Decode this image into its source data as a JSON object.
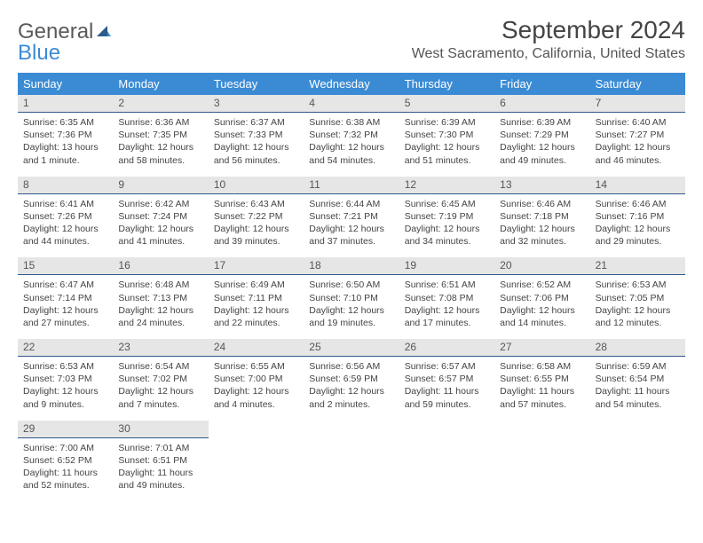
{
  "logo": {
    "text_general": "General",
    "text_blue": "Blue"
  },
  "title": "September 2024",
  "location": "West Sacramento, California, United States",
  "colors": {
    "header_bg": "#3b8bd4",
    "header_text": "#ffffff",
    "daynum_bg": "#e6e6e6",
    "daynum_border": "#2d5a8a",
    "body_text": "#444444",
    "page_bg": "#ffffff"
  },
  "typography": {
    "title_fontsize": 28,
    "location_fontsize": 16,
    "weekday_fontsize": 13,
    "daynum_fontsize": 12,
    "cell_fontsize": 10.5,
    "font_family": "Arial"
  },
  "layout": {
    "cols": 7,
    "rows": 5
  },
  "weekdays": [
    "Sunday",
    "Monday",
    "Tuesday",
    "Wednesday",
    "Thursday",
    "Friday",
    "Saturday"
  ],
  "weeks": [
    [
      {
        "day": "1",
        "sunrise": "Sunrise: 6:35 AM",
        "sunset": "Sunset: 7:36 PM",
        "daylight": "Daylight: 13 hours and 1 minute."
      },
      {
        "day": "2",
        "sunrise": "Sunrise: 6:36 AM",
        "sunset": "Sunset: 7:35 PM",
        "daylight": "Daylight: 12 hours and 58 minutes."
      },
      {
        "day": "3",
        "sunrise": "Sunrise: 6:37 AM",
        "sunset": "Sunset: 7:33 PM",
        "daylight": "Daylight: 12 hours and 56 minutes."
      },
      {
        "day": "4",
        "sunrise": "Sunrise: 6:38 AM",
        "sunset": "Sunset: 7:32 PM",
        "daylight": "Daylight: 12 hours and 54 minutes."
      },
      {
        "day": "5",
        "sunrise": "Sunrise: 6:39 AM",
        "sunset": "Sunset: 7:30 PM",
        "daylight": "Daylight: 12 hours and 51 minutes."
      },
      {
        "day": "6",
        "sunrise": "Sunrise: 6:39 AM",
        "sunset": "Sunset: 7:29 PM",
        "daylight": "Daylight: 12 hours and 49 minutes."
      },
      {
        "day": "7",
        "sunrise": "Sunrise: 6:40 AM",
        "sunset": "Sunset: 7:27 PM",
        "daylight": "Daylight: 12 hours and 46 minutes."
      }
    ],
    [
      {
        "day": "8",
        "sunrise": "Sunrise: 6:41 AM",
        "sunset": "Sunset: 7:26 PM",
        "daylight": "Daylight: 12 hours and 44 minutes."
      },
      {
        "day": "9",
        "sunrise": "Sunrise: 6:42 AM",
        "sunset": "Sunset: 7:24 PM",
        "daylight": "Daylight: 12 hours and 41 minutes."
      },
      {
        "day": "10",
        "sunrise": "Sunrise: 6:43 AM",
        "sunset": "Sunset: 7:22 PM",
        "daylight": "Daylight: 12 hours and 39 minutes."
      },
      {
        "day": "11",
        "sunrise": "Sunrise: 6:44 AM",
        "sunset": "Sunset: 7:21 PM",
        "daylight": "Daylight: 12 hours and 37 minutes."
      },
      {
        "day": "12",
        "sunrise": "Sunrise: 6:45 AM",
        "sunset": "Sunset: 7:19 PM",
        "daylight": "Daylight: 12 hours and 34 minutes."
      },
      {
        "day": "13",
        "sunrise": "Sunrise: 6:46 AM",
        "sunset": "Sunset: 7:18 PM",
        "daylight": "Daylight: 12 hours and 32 minutes."
      },
      {
        "day": "14",
        "sunrise": "Sunrise: 6:46 AM",
        "sunset": "Sunset: 7:16 PM",
        "daylight": "Daylight: 12 hours and 29 minutes."
      }
    ],
    [
      {
        "day": "15",
        "sunrise": "Sunrise: 6:47 AM",
        "sunset": "Sunset: 7:14 PM",
        "daylight": "Daylight: 12 hours and 27 minutes."
      },
      {
        "day": "16",
        "sunrise": "Sunrise: 6:48 AM",
        "sunset": "Sunset: 7:13 PM",
        "daylight": "Daylight: 12 hours and 24 minutes."
      },
      {
        "day": "17",
        "sunrise": "Sunrise: 6:49 AM",
        "sunset": "Sunset: 7:11 PM",
        "daylight": "Daylight: 12 hours and 22 minutes."
      },
      {
        "day": "18",
        "sunrise": "Sunrise: 6:50 AM",
        "sunset": "Sunset: 7:10 PM",
        "daylight": "Daylight: 12 hours and 19 minutes."
      },
      {
        "day": "19",
        "sunrise": "Sunrise: 6:51 AM",
        "sunset": "Sunset: 7:08 PM",
        "daylight": "Daylight: 12 hours and 17 minutes."
      },
      {
        "day": "20",
        "sunrise": "Sunrise: 6:52 AM",
        "sunset": "Sunset: 7:06 PM",
        "daylight": "Daylight: 12 hours and 14 minutes."
      },
      {
        "day": "21",
        "sunrise": "Sunrise: 6:53 AM",
        "sunset": "Sunset: 7:05 PM",
        "daylight": "Daylight: 12 hours and 12 minutes."
      }
    ],
    [
      {
        "day": "22",
        "sunrise": "Sunrise: 6:53 AM",
        "sunset": "Sunset: 7:03 PM",
        "daylight": "Daylight: 12 hours and 9 minutes."
      },
      {
        "day": "23",
        "sunrise": "Sunrise: 6:54 AM",
        "sunset": "Sunset: 7:02 PM",
        "daylight": "Daylight: 12 hours and 7 minutes."
      },
      {
        "day": "24",
        "sunrise": "Sunrise: 6:55 AM",
        "sunset": "Sunset: 7:00 PM",
        "daylight": "Daylight: 12 hours and 4 minutes."
      },
      {
        "day": "25",
        "sunrise": "Sunrise: 6:56 AM",
        "sunset": "Sunset: 6:59 PM",
        "daylight": "Daylight: 12 hours and 2 minutes."
      },
      {
        "day": "26",
        "sunrise": "Sunrise: 6:57 AM",
        "sunset": "Sunset: 6:57 PM",
        "daylight": "Daylight: 11 hours and 59 minutes."
      },
      {
        "day": "27",
        "sunrise": "Sunrise: 6:58 AM",
        "sunset": "Sunset: 6:55 PM",
        "daylight": "Daylight: 11 hours and 57 minutes."
      },
      {
        "day": "28",
        "sunrise": "Sunrise: 6:59 AM",
        "sunset": "Sunset: 6:54 PM",
        "daylight": "Daylight: 11 hours and 54 minutes."
      }
    ],
    [
      {
        "day": "29",
        "sunrise": "Sunrise: 7:00 AM",
        "sunset": "Sunset: 6:52 PM",
        "daylight": "Daylight: 11 hours and 52 minutes."
      },
      {
        "day": "30",
        "sunrise": "Sunrise: 7:01 AM",
        "sunset": "Sunset: 6:51 PM",
        "daylight": "Daylight: 11 hours and 49 minutes."
      },
      null,
      null,
      null,
      null,
      null
    ]
  ]
}
